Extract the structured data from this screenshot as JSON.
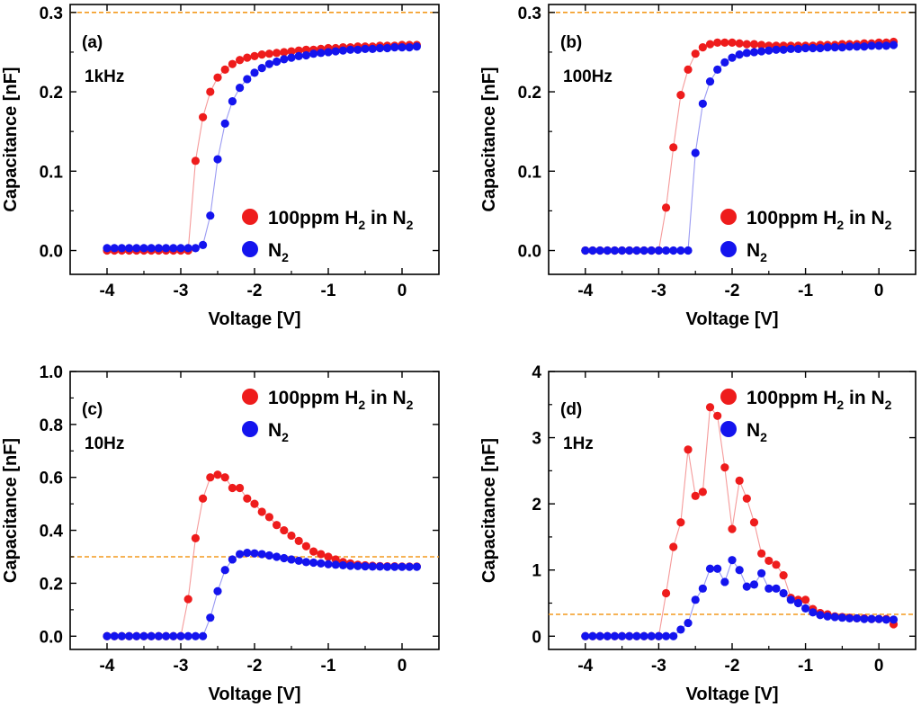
{
  "figure": {
    "colors": {
      "h2": "#ee1c1c",
      "n2": "#1414ee",
      "ref_line": "#f39a1e",
      "h2_line": "#f59a9a",
      "n2_line": "#9a9af2"
    }
  },
  "chart_data": [
    {
      "type": "scatter",
      "panel_label": "(a)",
      "frequency_label": "1kHz",
      "xlabel": "Voltage [V]",
      "ylabel": "Capacitance [nF]",
      "xlim": [
        -4.5,
        0.5
      ],
      "ylim": [
        -0.03,
        0.31
      ],
      "xticks": [
        -4,
        -3,
        -2,
        -1,
        0
      ],
      "xtick_labels": [
        "-4",
        "-3",
        "-2",
        "-1",
        "0"
      ],
      "yticks": [
        0.0,
        0.1,
        0.2,
        0.3
      ],
      "ytick_labels": [
        "0.0",
        "0.1",
        "0.2",
        "0.3"
      ],
      "ref_line": 0.3,
      "legend": {
        "position": "bottom-right",
        "h2_prefix": "100ppm H",
        "h2_sub1": "2",
        "h2_mid": " in N",
        "h2_sub2": "2",
        "n2_prefix": "N",
        "n2_sub": "2"
      },
      "series": [
        {
          "name": "100ppm H2 in N2",
          "x": [
            -4.0,
            -3.9,
            -3.8,
            -3.7,
            -3.6,
            -3.5,
            -3.4,
            -3.3,
            -3.2,
            -3.1,
            -3.0,
            -2.9,
            -2.8,
            -2.7,
            -2.6,
            -2.5,
            -2.4,
            -2.3,
            -2.2,
            -2.1,
            -2.0,
            -1.9,
            -1.8,
            -1.7,
            -1.6,
            -1.5,
            -1.4,
            -1.3,
            -1.2,
            -1.1,
            -1.0,
            -0.9,
            -0.8,
            -0.7,
            -0.6,
            -0.5,
            -0.4,
            -0.3,
            -0.2,
            -0.1,
            0.0,
            0.1,
            0.2
          ],
          "y": [
            0.0,
            0.0,
            0.0,
            0.0,
            0.0,
            0.0,
            0.0,
            0.0,
            0.0,
            0.0,
            0.0,
            0.0,
            0.113,
            0.168,
            0.2,
            0.218,
            0.228,
            0.235,
            0.24,
            0.243,
            0.245,
            0.247,
            0.248,
            0.249,
            0.25,
            0.251,
            0.252,
            0.253,
            0.253,
            0.254,
            0.255,
            0.255,
            0.256,
            0.256,
            0.257,
            0.257,
            0.257,
            0.258,
            0.258,
            0.258,
            0.259,
            0.259,
            0.259
          ]
        },
        {
          "name": "N2",
          "x": [
            -4.0,
            -3.9,
            -3.8,
            -3.7,
            -3.6,
            -3.5,
            -3.4,
            -3.3,
            -3.2,
            -3.1,
            -3.0,
            -2.9,
            -2.8,
            -2.7,
            -2.6,
            -2.5,
            -2.4,
            -2.3,
            -2.2,
            -2.1,
            -2.0,
            -1.9,
            -1.8,
            -1.7,
            -1.6,
            -1.5,
            -1.4,
            -1.3,
            -1.2,
            -1.1,
            -1.0,
            -0.9,
            -0.8,
            -0.7,
            -0.6,
            -0.5,
            -0.4,
            -0.3,
            -0.2,
            -0.1,
            0.0,
            0.1,
            0.2
          ],
          "y": [
            0.003,
            0.003,
            0.003,
            0.003,
            0.003,
            0.003,
            0.003,
            0.003,
            0.003,
            0.003,
            0.003,
            0.003,
            0.003,
            0.007,
            0.044,
            0.115,
            0.16,
            0.188,
            0.205,
            0.216,
            0.224,
            0.23,
            0.235,
            0.238,
            0.241,
            0.243,
            0.245,
            0.246,
            0.248,
            0.249,
            0.25,
            0.251,
            0.252,
            0.253,
            0.253,
            0.254,
            0.254,
            0.255,
            0.255,
            0.256,
            0.256,
            0.256,
            0.257
          ]
        }
      ]
    },
    {
      "type": "scatter",
      "panel_label": "(b)",
      "frequency_label": "100Hz",
      "xlabel": "Voltage [V]",
      "ylabel": "Capacitance [nF]",
      "xlim": [
        -4.5,
        0.5
      ],
      "ylim": [
        -0.03,
        0.31
      ],
      "xticks": [
        -4,
        -3,
        -2,
        -1,
        0
      ],
      "xtick_labels": [
        "-4",
        "-3",
        "-2",
        "-1",
        "0"
      ],
      "yticks": [
        0.0,
        0.1,
        0.2,
        0.3
      ],
      "ytick_labels": [
        "0.0",
        "0.1",
        "0.2",
        "0.3"
      ],
      "ref_line": 0.3,
      "legend": {
        "position": "bottom-right",
        "h2_prefix": "100ppm H",
        "h2_sub1": "2",
        "h2_mid": " in N",
        "h2_sub2": "2",
        "n2_prefix": "N",
        "n2_sub": "2"
      },
      "series": [
        {
          "name": "100ppm H2 in N2",
          "x": [
            -4.0,
            -3.9,
            -3.8,
            -3.7,
            -3.6,
            -3.5,
            -3.4,
            -3.3,
            -3.2,
            -3.1,
            -3.0,
            -2.9,
            -2.8,
            -2.7,
            -2.6,
            -2.5,
            -2.4,
            -2.3,
            -2.2,
            -2.1,
            -2.0,
            -1.9,
            -1.8,
            -1.7,
            -1.6,
            -1.5,
            -1.4,
            -1.3,
            -1.2,
            -1.1,
            -1.0,
            -0.9,
            -0.8,
            -0.7,
            -0.6,
            -0.5,
            -0.4,
            -0.3,
            -0.2,
            -0.1,
            0.0,
            0.1,
            0.2
          ],
          "y": [
            0.0,
            0.0,
            0.0,
            0.0,
            0.0,
            0.0,
            0.0,
            0.0,
            0.0,
            0.0,
            0.0,
            0.054,
            0.13,
            0.196,
            0.228,
            0.248,
            0.256,
            0.26,
            0.262,
            0.262,
            0.262,
            0.261,
            0.26,
            0.26,
            0.259,
            0.258,
            0.258,
            0.258,
            0.258,
            0.258,
            0.258,
            0.258,
            0.259,
            0.259,
            0.259,
            0.26,
            0.26,
            0.26,
            0.261,
            0.261,
            0.262,
            0.262,
            0.263
          ]
        },
        {
          "name": "N2",
          "x": [
            -4.0,
            -3.9,
            -3.8,
            -3.7,
            -3.6,
            -3.5,
            -3.4,
            -3.3,
            -3.2,
            -3.1,
            -3.0,
            -2.9,
            -2.8,
            -2.7,
            -2.6,
            -2.5,
            -2.4,
            -2.3,
            -2.2,
            -2.1,
            -2.0,
            -1.9,
            -1.8,
            -1.7,
            -1.6,
            -1.5,
            -1.4,
            -1.3,
            -1.2,
            -1.1,
            -1.0,
            -0.9,
            -0.8,
            -0.7,
            -0.6,
            -0.5,
            -0.4,
            -0.3,
            -0.2,
            -0.1,
            0.0,
            0.1,
            0.2
          ],
          "y": [
            0.0,
            0.0,
            0.0,
            0.0,
            0.0,
            0.0,
            0.0,
            0.0,
            0.0,
            0.0,
            0.0,
            0.0,
            0.0,
            0.0,
            0.0,
            0.123,
            0.185,
            0.213,
            0.228,
            0.237,
            0.243,
            0.247,
            0.249,
            0.25,
            0.251,
            0.252,
            0.253,
            0.253,
            0.254,
            0.254,
            0.255,
            0.255,
            0.255,
            0.256,
            0.256,
            0.256,
            0.257,
            0.257,
            0.257,
            0.258,
            0.258,
            0.258,
            0.259
          ]
        }
      ]
    },
    {
      "type": "scatter",
      "panel_label": "(c)",
      "frequency_label": "10Hz",
      "xlabel": "Voltage [V]",
      "ylabel": "Capacitance [nF]",
      "xlim": [
        -4.5,
        0.5
      ],
      "ylim": [
        -0.05,
        1.0
      ],
      "xticks": [
        -4,
        -3,
        -2,
        -1,
        0
      ],
      "xtick_labels": [
        "-4",
        "-3",
        "-2",
        "-1",
        "0"
      ],
      "yticks": [
        0.0,
        0.2,
        0.4,
        0.6,
        0.8,
        1.0
      ],
      "ytick_labels": [
        "0.0",
        "0.2",
        "0.4",
        "0.6",
        "0.8",
        "1.0"
      ],
      "ref_line": 0.3,
      "legend": {
        "position": "top-right",
        "h2_prefix": "100ppm H",
        "h2_sub1": "2",
        "h2_mid": " in N",
        "h2_sub2": "2",
        "n2_prefix": "N",
        "n2_sub": "2"
      },
      "series": [
        {
          "name": "100ppm H2 in N2",
          "x": [
            -4.0,
            -3.9,
            -3.8,
            -3.7,
            -3.6,
            -3.5,
            -3.4,
            -3.3,
            -3.2,
            -3.1,
            -3.0,
            -2.9,
            -2.8,
            -2.7,
            -2.6,
            -2.5,
            -2.4,
            -2.3,
            -2.2,
            -2.1,
            -2.0,
            -1.9,
            -1.8,
            -1.7,
            -1.6,
            -1.5,
            -1.4,
            -1.3,
            -1.2,
            -1.1,
            -1.0,
            -0.9,
            -0.8,
            -0.7,
            -0.6,
            -0.5,
            -0.4,
            -0.3,
            -0.2,
            -0.1,
            0.0,
            0.1,
            0.2
          ],
          "y": [
            0.0,
            0.0,
            0.0,
            0.0,
            0.0,
            0.0,
            0.0,
            0.0,
            0.0,
            0.0,
            0.0,
            0.14,
            0.37,
            0.52,
            0.6,
            0.61,
            0.6,
            0.56,
            0.56,
            0.52,
            0.5,
            0.47,
            0.45,
            0.42,
            0.4,
            0.38,
            0.36,
            0.34,
            0.32,
            0.31,
            0.3,
            0.29,
            0.28,
            0.275,
            0.27,
            0.268,
            0.266,
            0.265,
            0.264,
            0.264,
            0.263,
            0.263,
            0.263
          ]
        },
        {
          "name": "N2",
          "x": [
            -4.0,
            -3.9,
            -3.8,
            -3.7,
            -3.6,
            -3.5,
            -3.4,
            -3.3,
            -3.2,
            -3.1,
            -3.0,
            -2.9,
            -2.8,
            -2.7,
            -2.6,
            -2.5,
            -2.4,
            -2.3,
            -2.2,
            -2.1,
            -2.0,
            -1.9,
            -1.8,
            -1.7,
            -1.6,
            -1.5,
            -1.4,
            -1.3,
            -1.2,
            -1.1,
            -1.0,
            -0.9,
            -0.8,
            -0.7,
            -0.6,
            -0.5,
            -0.4,
            -0.3,
            -0.2,
            -0.1,
            0.0,
            0.1,
            0.2
          ],
          "y": [
            0.0,
            0.0,
            0.0,
            0.0,
            0.0,
            0.0,
            0.0,
            0.0,
            0.0,
            0.0,
            0.0,
            0.0,
            0.0,
            0.0,
            0.07,
            0.17,
            0.25,
            0.29,
            0.31,
            0.315,
            0.313,
            0.31,
            0.305,
            0.3,
            0.295,
            0.29,
            0.285,
            0.28,
            0.278,
            0.275,
            0.272,
            0.27,
            0.268,
            0.266,
            0.265,
            0.264,
            0.263,
            0.263,
            0.262,
            0.262,
            0.262,
            0.262,
            0.262
          ]
        }
      ]
    },
    {
      "type": "scatter",
      "panel_label": "(d)",
      "frequency_label": "1Hz",
      "xlabel": "Voltage [V]",
      "ylabel": "Capacitance [nF]",
      "xlim": [
        -4.5,
        0.5
      ],
      "ylim": [
        -0.2,
        4.0
      ],
      "xticks": [
        -4,
        -3,
        -2,
        -1,
        0
      ],
      "xtick_labels": [
        "-4",
        "-3",
        "-2",
        "-1",
        "0"
      ],
      "yticks": [
        0,
        1,
        2,
        3,
        4
      ],
      "ytick_labels": [
        "0",
        "1",
        "2",
        "3",
        "4"
      ],
      "ref_line": 0.33,
      "legend": {
        "position": "top-right",
        "h2_prefix": "100ppm H",
        "h2_sub1": "2",
        "h2_mid": " in N",
        "h2_sub2": "2",
        "n2_prefix": "N",
        "n2_sub": "2"
      },
      "series": [
        {
          "name": "100ppm H2 in N2",
          "x": [
            -4.0,
            -3.9,
            -3.8,
            -3.7,
            -3.6,
            -3.5,
            -3.4,
            -3.3,
            -3.2,
            -3.1,
            -3.0,
            -2.9,
            -2.8,
            -2.7,
            -2.6,
            -2.5,
            -2.4,
            -2.3,
            -2.2,
            -2.1,
            -2.0,
            -1.9,
            -1.8,
            -1.7,
            -1.6,
            -1.5,
            -1.4,
            -1.3,
            -1.2,
            -1.1,
            -1.0,
            -0.9,
            -0.8,
            -0.7,
            -0.6,
            -0.5,
            -0.4,
            -0.3,
            -0.2,
            -0.1,
            0.0,
            0.1,
            0.2
          ],
          "y": [
            0.0,
            0.0,
            0.0,
            0.0,
            0.0,
            0.0,
            0.0,
            0.0,
            0.0,
            0.0,
            0.0,
            0.65,
            1.35,
            1.72,
            2.82,
            2.12,
            2.18,
            3.46,
            3.33,
            2.55,
            1.62,
            2.35,
            2.08,
            1.72,
            1.25,
            1.14,
            1.08,
            0.92,
            0.58,
            0.55,
            0.55,
            0.41,
            0.35,
            0.33,
            0.3,
            0.29,
            0.28,
            0.27,
            0.27,
            0.26,
            0.26,
            0.26,
            0.18
          ]
        },
        {
          "name": "N2",
          "x": [
            -4.0,
            -3.9,
            -3.8,
            -3.7,
            -3.6,
            -3.5,
            -3.4,
            -3.3,
            -3.2,
            -3.1,
            -3.0,
            -2.9,
            -2.8,
            -2.7,
            -2.6,
            -2.5,
            -2.4,
            -2.3,
            -2.2,
            -2.1,
            -2.0,
            -1.9,
            -1.8,
            -1.7,
            -1.6,
            -1.5,
            -1.4,
            -1.3,
            -1.2,
            -1.1,
            -1.0,
            -0.9,
            -0.8,
            -0.7,
            -0.6,
            -0.5,
            -0.4,
            -0.3,
            -0.2,
            -0.1,
            0.0,
            0.1,
            0.2
          ],
          "y": [
            0.0,
            0.0,
            0.0,
            0.0,
            0.0,
            0.0,
            0.0,
            0.0,
            0.0,
            0.0,
            0.0,
            0.0,
            0.0,
            0.1,
            0.2,
            0.55,
            0.72,
            1.02,
            1.02,
            0.82,
            1.15,
            1.0,
            0.75,
            0.78,
            0.95,
            0.72,
            0.72,
            0.65,
            0.55,
            0.5,
            0.42,
            0.36,
            0.32,
            0.3,
            0.29,
            0.28,
            0.27,
            0.27,
            0.26,
            0.26,
            0.26,
            0.25,
            0.25
          ]
        }
      ]
    }
  ]
}
